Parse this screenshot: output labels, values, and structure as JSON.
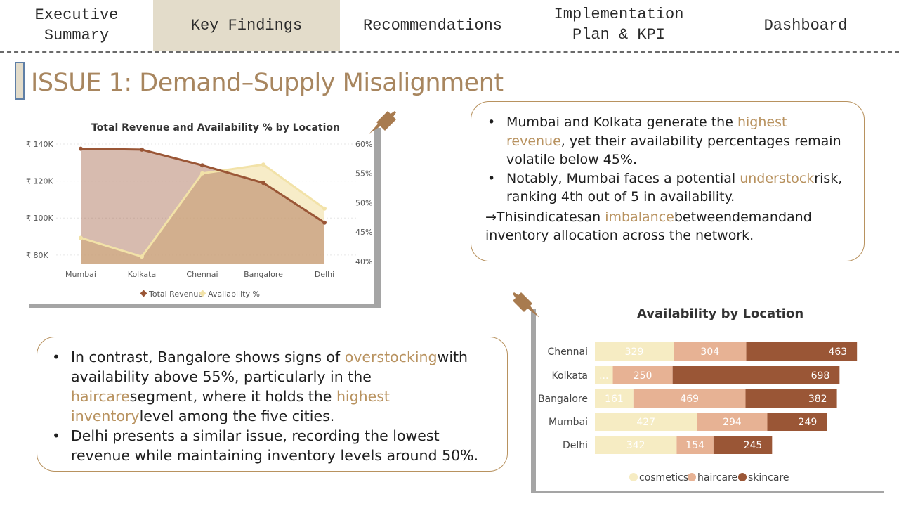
{
  "nav": {
    "tabs": [
      {
        "label": "Executive\nSummary",
        "active": false
      },
      {
        "label": "Key Findings",
        "active": true
      },
      {
        "label": "Recommendations",
        "active": false
      },
      {
        "label": "Implementation\nPlan & KPI",
        "active": false
      },
      {
        "label": "Dashboard",
        "active": false
      }
    ]
  },
  "page": {
    "title": "ISSUE 1: Demand–Supply Misalignment"
  },
  "colors": {
    "accent": "#b8925f",
    "active_tab": "#e3dcca",
    "revenue": "#9a5636",
    "availability": "#f3e4b0",
    "cosmetics": "#f6ecc3",
    "haircare": "#e7b294",
    "skincare": "#9a5636"
  },
  "chart_data": [
    {
      "type": "line",
      "title": "Total Revenue and Availability % by Location",
      "categories": [
        "Mumbai",
        "Kolkata",
        "Chennai",
        "Bangalore",
        "Delhi"
      ],
      "series": [
        {
          "name": "Total Revenue",
          "axis": "left",
          "values": [
            137.5,
            137,
            128.5,
            119,
            97.5
          ]
        },
        {
          "name": "Availability %",
          "axis": "right",
          "values": [
            44,
            40.8,
            55,
            56.5,
            49
          ]
        }
      ],
      "y_left": {
        "ticks": [
          "₹ 80K",
          "₹ 100K",
          "₹ 120K",
          "₹ 140K"
        ],
        "range": [
          75,
          140
        ]
      },
      "y_right": {
        "ticks": [
          "40%",
          "45%",
          "50%",
          "55%",
          "60%"
        ],
        "range": [
          39.5,
          60
        ]
      },
      "legend": [
        "Total Revenue",
        "Availability %"
      ],
      "legend_position": "bottom",
      "grid": true
    },
    {
      "type": "bar",
      "stacked": true,
      "orientation": "horizontal",
      "title": "Availability by Location",
      "categories": [
        "Chennai",
        "Kolkata",
        "Bangalore",
        "Mumbai",
        "Delhi"
      ],
      "series": [
        {
          "name": "cosmetics",
          "values": [
            329,
            75,
            161,
            427,
            342
          ],
          "labels": [
            "329",
            "...",
            "161",
            "427",
            "342"
          ]
        },
        {
          "name": "haircare",
          "values": [
            304,
            250,
            469,
            294,
            154
          ],
          "labels": [
            "304",
            "250",
            "469",
            "294",
            "154"
          ]
        },
        {
          "name": "skincare",
          "values": [
            463,
            698,
            382,
            249,
            245
          ],
          "labels": [
            "463",
            "698",
            "382",
            "249",
            "245"
          ]
        }
      ],
      "legend": [
        "cosmetics",
        "haircare",
        "skincare"
      ],
      "legend_position": "bottom"
    }
  ],
  "box1": {
    "b1_pre": "Mumbai and Kolkata generate the ",
    "b1_hl": "highest revenue",
    "b1_post": ", yet their availability percentages remain volatile below 45%.",
    "b2_pre": "Notably, Mumbai faces a potential ",
    "b2_hl": "understock",
    "b2_post": "risk, ranking 4th out of 5 in availability.",
    "c_pre": "→Thisindicatesan ",
    "c_hl": "imbalance",
    "c_post": "betweendemandand inventory allocation across the network."
  },
  "box2": {
    "b1_pre": "In contrast, Bangalore shows signs of ",
    "b1_hl1": "overstocking",
    "b1_mid1": "with availability above 55%, particularly in the ",
    "b1_hl2": "haircare",
    "b1_mid2": "segment, where it holds the ",
    "b1_hl3": "highest inventory",
    "b1_post": "level among the five cities.",
    "b2": "Delhi presents a similar issue, recording the lowest revenue while maintaining inventory levels around 50%."
  }
}
